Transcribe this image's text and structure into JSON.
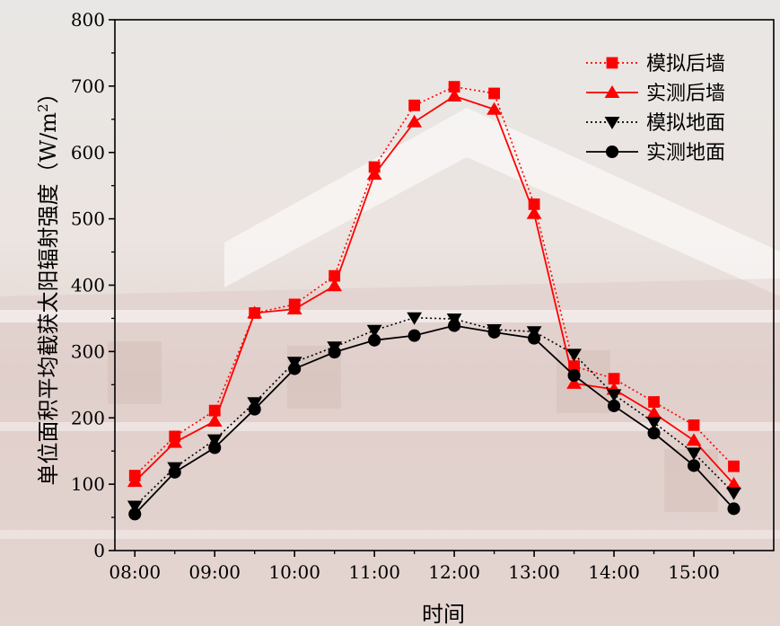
{
  "chart_data": {
    "type": "line",
    "title": "",
    "xlabel": "时间",
    "ylabel": "单位面积平均截获太阳辐射强度（W/m²）",
    "ylabel_main": "单位面积平均截获太阳辐射强度（W/m",
    "ylabel_sup": "2",
    "ylabel_end": "）",
    "ylim": [
      0,
      800
    ],
    "yticks": [
      "0",
      "100",
      "200",
      "300",
      "400",
      "500",
      "600",
      "700",
      "800"
    ],
    "xlim": [
      7.75,
      16.0
    ],
    "xtick_labels": [
      "08:00",
      "09:00",
      "10:00",
      "11:00",
      "12:00",
      "13:00",
      "14:00",
      "15:00"
    ],
    "x": [
      "08:00",
      "08:30",
      "09:00",
      "09:30",
      "10:00",
      "10:30",
      "11:00",
      "11:30",
      "12:00",
      "12:30",
      "13:00",
      "13:30",
      "14:00",
      "14:30",
      "15:00",
      "15:30"
    ],
    "grid": false,
    "legend_position": "top-right",
    "series": [
      {
        "name": "模拟后墙",
        "color": "#ff0000",
        "line": "dotted",
        "marker": "square",
        "values": [
          113,
          172,
          211,
          358,
          371,
          414,
          578,
          671,
          699,
          689,
          522,
          278,
          259,
          224,
          189,
          127
        ]
      },
      {
        "name": "实测后墙",
        "color": "#ff0000",
        "line": "solid",
        "marker": "triangle-up",
        "values": [
          104,
          163,
          195,
          358,
          364,
          399,
          567,
          646,
          685,
          665,
          508,
          252,
          243,
          207,
          166,
          100
        ]
      },
      {
        "name": "模拟地面",
        "color": "#000000",
        "line": "dotted",
        "marker": "triangle-down",
        "values": [
          67,
          125,
          167,
          223,
          284,
          307,
          332,
          351,
          349,
          333,
          330,
          296,
          235,
          193,
          147,
          87
        ]
      },
      {
        "name": "实测地面",
        "color": "#000000",
        "line": "solid",
        "marker": "circle",
        "values": [
          55,
          118,
          155,
          213,
          274,
          299,
          317,
          324,
          339,
          329,
          320,
          264,
          218,
          177,
          128,
          63
        ]
      }
    ]
  }
}
